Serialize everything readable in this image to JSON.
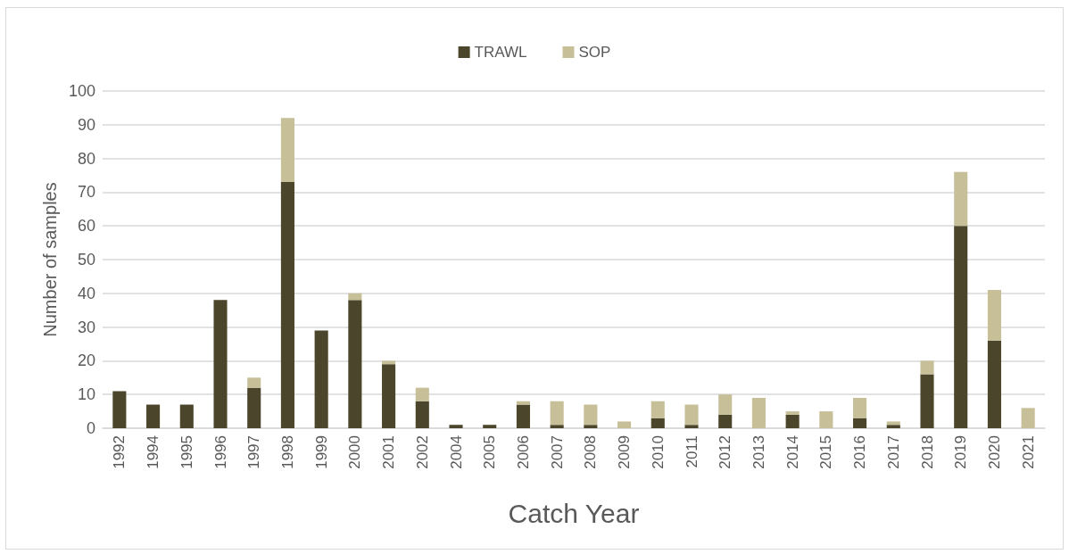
{
  "chart_data": {
    "type": "bar",
    "stacked": true,
    "xlabel": "Catch Year",
    "ylabel": "Number of samples",
    "categories": [
      "1992",
      "1994",
      "1995",
      "1996",
      "1997",
      "1998",
      "1999",
      "2000",
      "2001",
      "2002",
      "2004",
      "2005",
      "2006",
      "2007",
      "2008",
      "2009",
      "2010",
      "2011",
      "2012",
      "2013",
      "2014",
      "2015",
      "2016",
      "2017",
      "2018",
      "2019",
      "2020",
      "2021"
    ],
    "series": [
      {
        "name": "TRAWL",
        "color": "#4b452b",
        "values": [
          11,
          7,
          7,
          38,
          12,
          73,
          29,
          38,
          19,
          8,
          1,
          1,
          7,
          1,
          1,
          0,
          3,
          1,
          4,
          0,
          4,
          0,
          3,
          1,
          16,
          60,
          26,
          0
        ]
      },
      {
        "name": "SOP",
        "color": "#c6bf98",
        "values": [
          0,
          0,
          0,
          0,
          3,
          19,
          0,
          2,
          1,
          4,
          0,
          0,
          1,
          7,
          6,
          2,
          5,
          6,
          6,
          9,
          1,
          5,
          6,
          1,
          4,
          16,
          15,
          6
        ]
      }
    ],
    "ylim": [
      0,
      100
    ],
    "yticks": [
      0,
      10,
      20,
      30,
      40,
      50,
      60,
      70,
      80,
      90,
      100
    ],
    "grid": "y",
    "legend": "top"
  }
}
